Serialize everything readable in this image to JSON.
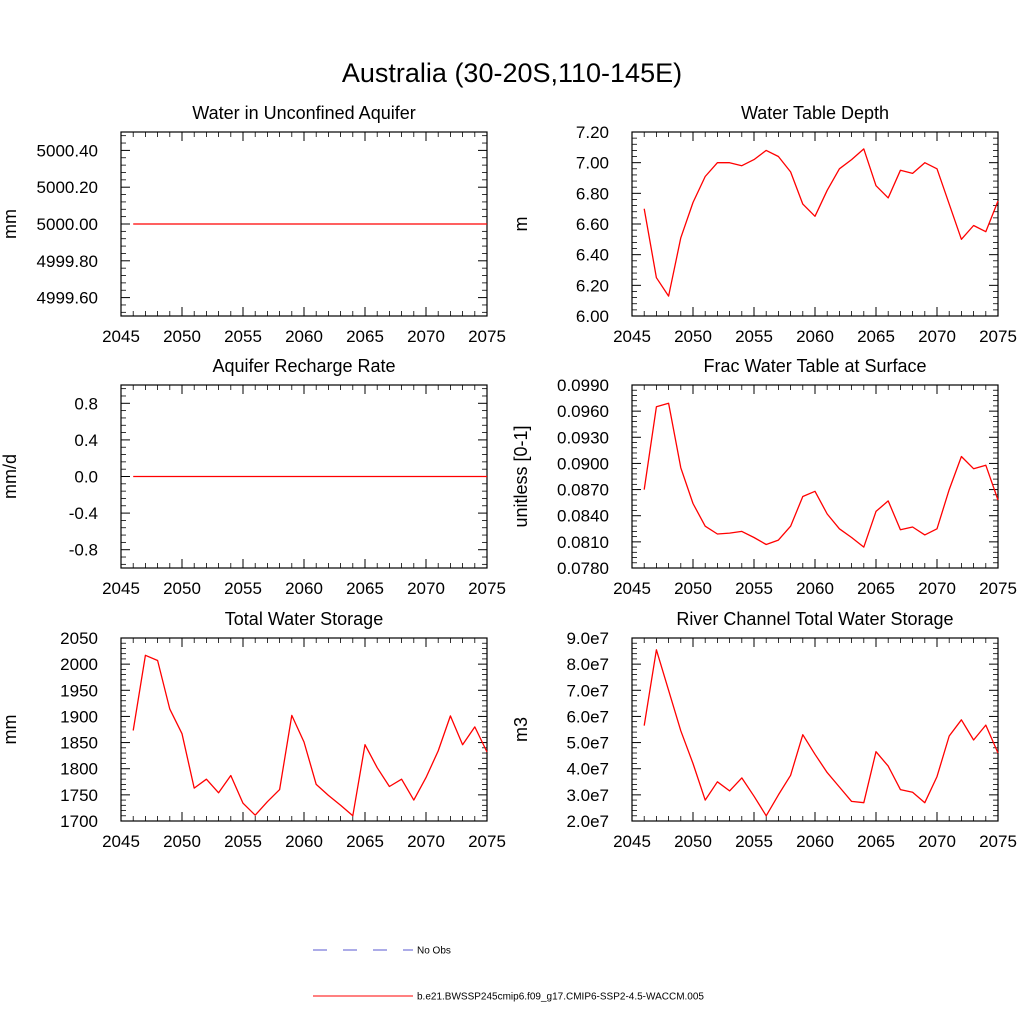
{
  "figure": {
    "title": "Australia (30-20S,110-145E)",
    "line_color": "#ff0000",
    "obs_color": "#5a5ad0"
  },
  "legend": {
    "placement": "bottom-center",
    "entries": [
      {
        "label": "No Obs",
        "style": "dashed",
        "color": "#5a5ad0"
      },
      {
        "label": "b.e21.BWSSP245cmip6.f09_g17.CMIP6-SSP2-4.5-WACCM.005",
        "style": "solid",
        "color": "#ff0000"
      }
    ]
  },
  "chart_data": [
    {
      "type": "line",
      "title": "Water in Unconfined Aquifer",
      "ylabel": "mm",
      "xlim": [
        2045,
        2075
      ],
      "ylim": [
        4999.5,
        5000.5
      ],
      "xticks": [
        2045,
        2050,
        2055,
        2060,
        2065,
        2070,
        2075
      ],
      "yticks": [
        4999.6,
        4999.8,
        5000.0,
        5000.2,
        5000.4
      ],
      "ytick_labels": [
        "4999.60",
        "4999.80",
        "5000.00",
        "5000.20",
        "5000.40"
      ],
      "x": [
        2046,
        2047,
        2048,
        2049,
        2050,
        2051,
        2052,
        2053,
        2054,
        2055,
        2056,
        2057,
        2058,
        2059,
        2060,
        2061,
        2062,
        2063,
        2064,
        2065,
        2066,
        2067,
        2068,
        2069,
        2070,
        2071,
        2072,
        2073,
        2074,
        2075
      ],
      "y": [
        5000,
        5000,
        5000,
        5000,
        5000,
        5000,
        5000,
        5000,
        5000,
        5000,
        5000,
        5000,
        5000,
        5000,
        5000,
        5000,
        5000,
        5000,
        5000,
        5000,
        5000,
        5000,
        5000,
        5000,
        5000,
        5000,
        5000,
        5000,
        5000,
        5000
      ]
    },
    {
      "type": "line",
      "title": "Water Table Depth",
      "ylabel": "m",
      "xlim": [
        2045,
        2075
      ],
      "ylim": [
        6.0,
        7.2
      ],
      "xticks": [
        2045,
        2050,
        2055,
        2060,
        2065,
        2070,
        2075
      ],
      "yticks": [
        6.0,
        6.2,
        6.4,
        6.6,
        6.8,
        7.0,
        7.2
      ],
      "ytick_labels": [
        "6.00",
        "6.20",
        "6.40",
        "6.60",
        "6.80",
        "7.00",
        "7.20"
      ],
      "x": [
        2046,
        2047,
        2048,
        2049,
        2050,
        2051,
        2052,
        2053,
        2054,
        2055,
        2056,
        2057,
        2058,
        2059,
        2060,
        2061,
        2062,
        2063,
        2064,
        2065,
        2066,
        2067,
        2068,
        2069,
        2070,
        2071,
        2072,
        2073,
        2074,
        2075
      ],
      "y": [
        6.7,
        6.25,
        6.13,
        6.51,
        6.74,
        6.91,
        7.0,
        7.0,
        6.98,
        7.02,
        7.08,
        7.04,
        6.94,
        6.73,
        6.65,
        6.82,
        6.96,
        7.02,
        7.09,
        6.85,
        6.77,
        6.95,
        6.93,
        7.0,
        6.96,
        6.73,
        6.5,
        6.59,
        6.55,
        6.75
      ]
    },
    {
      "type": "line",
      "title": "Aquifer Recharge Rate",
      "ylabel": "mm/d",
      "xlim": [
        2045,
        2075
      ],
      "ylim": [
        -1.0,
        1.0
      ],
      "xticks": [
        2045,
        2050,
        2055,
        2060,
        2065,
        2070,
        2075
      ],
      "yticks": [
        -0.8,
        -0.4,
        0.0,
        0.4,
        0.8
      ],
      "ytick_labels": [
        "-0.8",
        "-0.4",
        "0.0",
        "0.4",
        "0.8"
      ],
      "x": [
        2046,
        2047,
        2048,
        2049,
        2050,
        2051,
        2052,
        2053,
        2054,
        2055,
        2056,
        2057,
        2058,
        2059,
        2060,
        2061,
        2062,
        2063,
        2064,
        2065,
        2066,
        2067,
        2068,
        2069,
        2070,
        2071,
        2072,
        2073,
        2074,
        2075
      ],
      "y": [
        0,
        0,
        0,
        0,
        0,
        0,
        0,
        0,
        0,
        0,
        0,
        0,
        0,
        0,
        0,
        0,
        0,
        0,
        0,
        0,
        0,
        0,
        0,
        0,
        0,
        0,
        0,
        0,
        0,
        0
      ]
    },
    {
      "type": "line",
      "title": "Frac Water Table at Surface",
      "ylabel": "unitless [0-1]",
      "xlim": [
        2045,
        2075
      ],
      "ylim": [
        0.078,
        0.099
      ],
      "xticks": [
        2045,
        2050,
        2055,
        2060,
        2065,
        2070,
        2075
      ],
      "yticks": [
        0.078,
        0.081,
        0.084,
        0.087,
        0.09,
        0.093,
        0.096,
        0.099
      ],
      "ytick_labels": [
        "0.0780",
        "0.0810",
        "0.0840",
        "0.0870",
        "0.0900",
        "0.0930",
        "0.0960",
        "0.0990"
      ],
      "x": [
        2046,
        2047,
        2048,
        2049,
        2050,
        2051,
        2052,
        2053,
        2054,
        2055,
        2056,
        2057,
        2058,
        2059,
        2060,
        2061,
        2062,
        2063,
        2064,
        2065,
        2066,
        2067,
        2068,
        2069,
        2070,
        2071,
        2072,
        2073,
        2074,
        2075
      ],
      "y": [
        0.087,
        0.0965,
        0.0969,
        0.0895,
        0.0854,
        0.0828,
        0.0819,
        0.082,
        0.0822,
        0.0815,
        0.0807,
        0.0812,
        0.0828,
        0.0862,
        0.0868,
        0.0842,
        0.0825,
        0.0815,
        0.0804,
        0.0845,
        0.0857,
        0.0824,
        0.0827,
        0.0818,
        0.0825,
        0.087,
        0.0908,
        0.0894,
        0.0898,
        0.0858
      ]
    },
    {
      "type": "line",
      "title": "Total Water Storage",
      "ylabel": "mm",
      "xlim": [
        2045,
        2075
      ],
      "ylim": [
        1700,
        2050
      ],
      "xticks": [
        2045,
        2050,
        2055,
        2060,
        2065,
        2070,
        2075
      ],
      "yticks": [
        1700,
        1750,
        1800,
        1850,
        1900,
        1950,
        2000,
        2050
      ],
      "ytick_labels": [
        "1700",
        "1750",
        "1800",
        "1850",
        "1900",
        "1950",
        "2000",
        "2050"
      ],
      "x": [
        2046,
        2047,
        2048,
        2049,
        2050,
        2051,
        2052,
        2053,
        2054,
        2055,
        2056,
        2057,
        2058,
        2059,
        2060,
        2061,
        2062,
        2063,
        2064,
        2065,
        2066,
        2067,
        2068,
        2069,
        2070,
        2071,
        2072,
        2073,
        2074,
        2075
      ],
      "y": [
        1873,
        2017,
        2007,
        1914,
        1867,
        1763,
        1780,
        1754,
        1787,
        1734,
        1711,
        1737,
        1760,
        1902,
        1851,
        1770,
        1749,
        1730,
        1710,
        1846,
        1802,
        1766,
        1780,
        1740,
        1783,
        1834,
        1901,
        1846,
        1880,
        1832
      ]
    },
    {
      "type": "line",
      "title": "River Channel Total Water Storage",
      "ylabel": "m3",
      "xlim": [
        2045,
        2075
      ],
      "ylim": [
        20000000,
        90000000
      ],
      "xticks": [
        2045,
        2050,
        2055,
        2060,
        2065,
        2070,
        2075
      ],
      "yticks": [
        20000000,
        30000000,
        40000000,
        50000000,
        60000000,
        70000000,
        80000000,
        90000000
      ],
      "ytick_labels": [
        "2.0e7",
        "3.0e7",
        "4.0e7",
        "5.0e7",
        "6.0e7",
        "7.0e7",
        "8.0e7",
        "9.0e7"
      ],
      "x": [
        2046,
        2047,
        2048,
        2049,
        2050,
        2051,
        2052,
        2053,
        2054,
        2055,
        2056,
        2057,
        2058,
        2059,
        2060,
        2061,
        2062,
        2063,
        2064,
        2065,
        2066,
        2067,
        2068,
        2069,
        2070,
        2071,
        2072,
        2073,
        2074,
        2075
      ],
      "y": [
        56500000,
        85500000,
        70000000,
        54500000,
        42000000,
        28000000,
        35000000,
        31500000,
        36500000,
        29500000,
        22000000,
        30000000,
        37500000,
        53000000,
        45500000,
        38500000,
        33000000,
        27500000,
        27000000,
        46500000,
        41000000,
        32000000,
        31000000,
        27000000,
        37000000,
        52500000,
        58700000,
        51000000,
        56700000,
        46000000
      ]
    }
  ]
}
